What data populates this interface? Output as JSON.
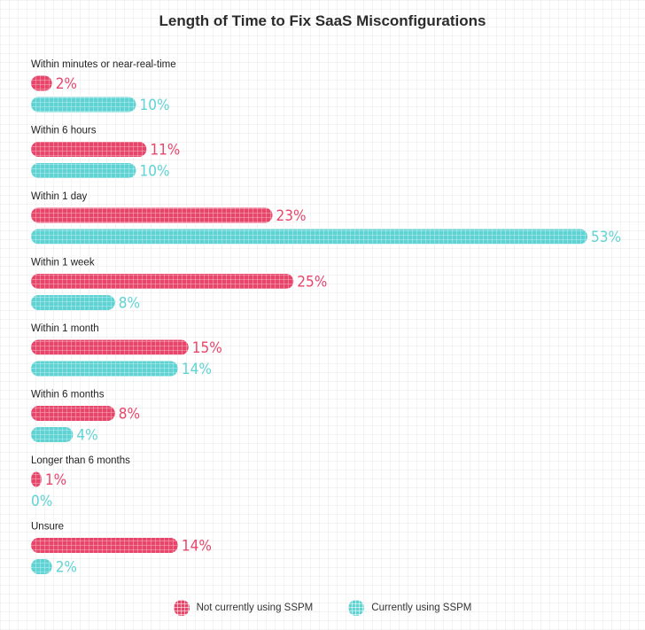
{
  "chart_data": {
    "type": "bar",
    "orientation": "horizontal",
    "title": "Length of Time to Fix SaaS Misconfigurations",
    "categories": [
      "Within minutes or near-real-time",
      "Within 6 hours",
      "Within 1 day",
      "Within 1 week",
      "Within 1 month",
      "Within 6 months",
      "Longer than 6 months",
      "Unsure"
    ],
    "series": [
      {
        "name": "Not currently using SSPM",
        "color": "#e8456a",
        "values": [
          2,
          11,
          23,
          25,
          15,
          8,
          1,
          14
        ],
        "labels": [
          "2%",
          "11%",
          "23%",
          "25%",
          "15%",
          "8%",
          "1%",
          "14%"
        ]
      },
      {
        "name": "Currently using SSPM",
        "color": "#5fd3d3",
        "values": [
          10,
          10,
          53,
          8,
          14,
          4,
          0,
          2
        ],
        "labels": [
          "10%",
          "10%",
          "53%",
          "8%",
          "14%",
          "4%",
          "0%",
          "2%"
        ]
      }
    ],
    "xlim": [
      0,
      53
    ],
    "grid": true,
    "legend_position": "bottom"
  }
}
